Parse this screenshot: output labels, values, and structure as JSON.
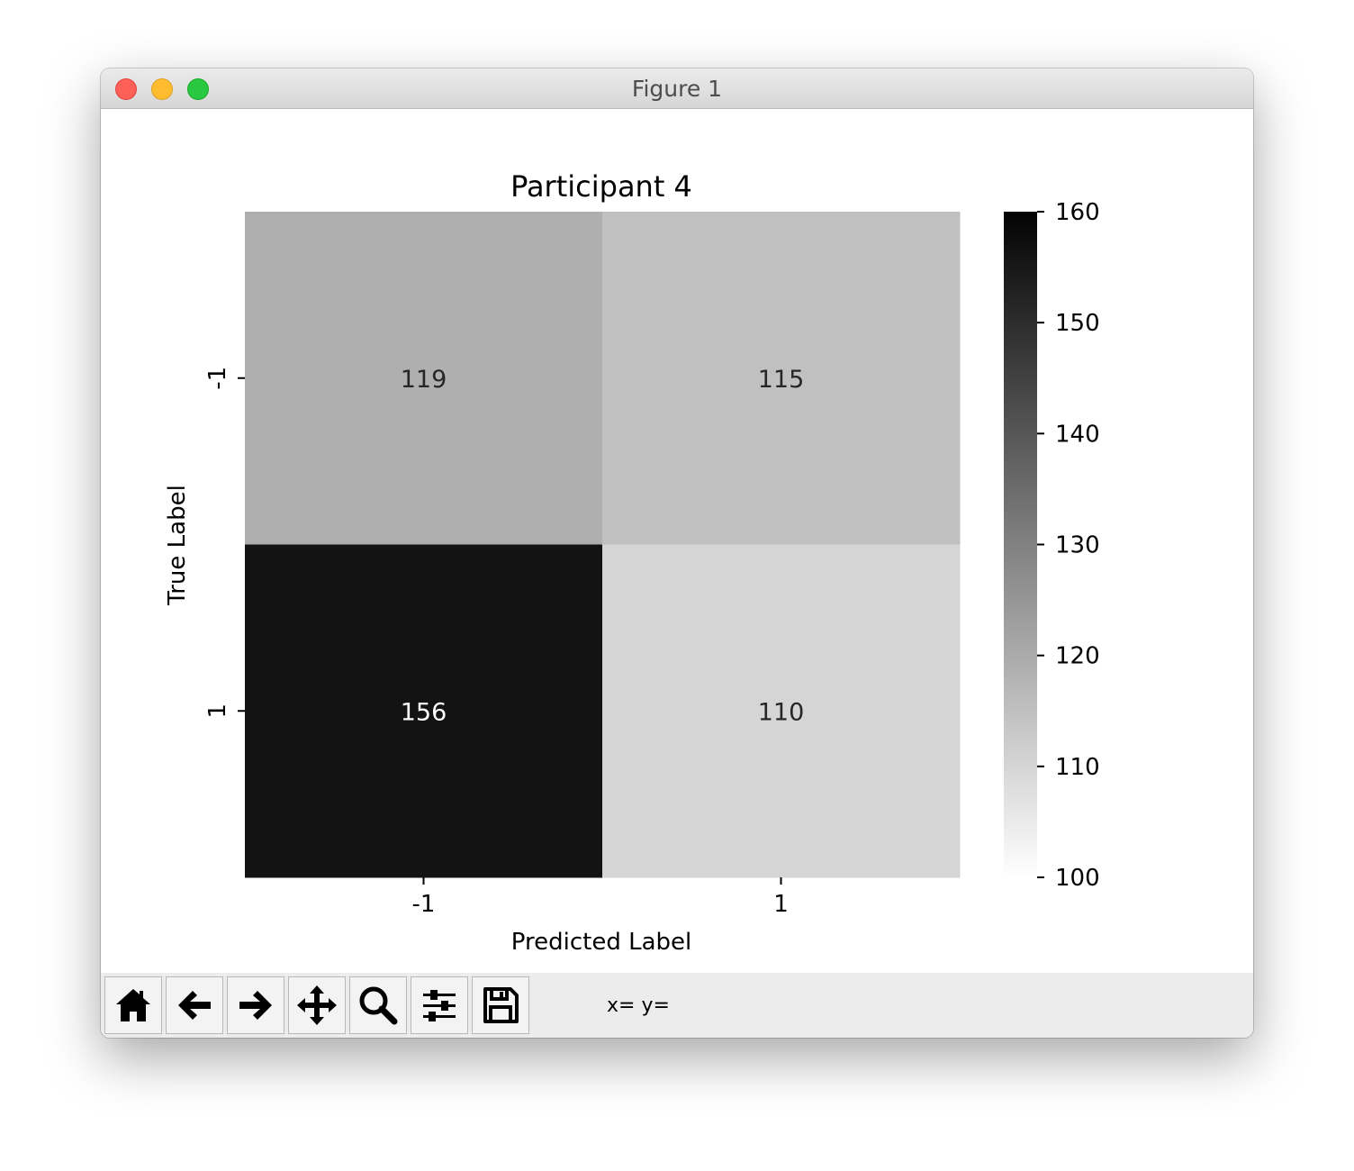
{
  "window": {
    "title": "Figure 1"
  },
  "toolbar": {
    "buttons": [
      {
        "name": "home-button",
        "icon": "home-icon"
      },
      {
        "name": "back-button",
        "icon": "arrow-left-icon"
      },
      {
        "name": "forward-button",
        "icon": "arrow-right-icon"
      },
      {
        "name": "pan-button",
        "icon": "move-arrows-icon"
      },
      {
        "name": "zoom-button",
        "icon": "magnifier-icon"
      },
      {
        "name": "configure-subplots-button",
        "icon": "sliders-icon"
      },
      {
        "name": "save-button",
        "icon": "floppy-disk-icon"
      }
    ],
    "coords_text": "x= y="
  },
  "chart_data": {
    "type": "heatmap",
    "title": "Participant 4",
    "xlabel": "Predicted Label",
    "ylabel": "True Label",
    "x_categories": [
      "-1",
      "1"
    ],
    "y_categories": [
      "-1",
      "1"
    ],
    "values": [
      [
        119,
        115
      ],
      [
        156,
        110
      ]
    ],
    "colormap": "Greys",
    "colorbar": {
      "min": 100,
      "max": 160,
      "ticks": [
        "100",
        "110",
        "120",
        "130",
        "140",
        "150",
        "160"
      ]
    },
    "grid": false,
    "legend": "none"
  }
}
